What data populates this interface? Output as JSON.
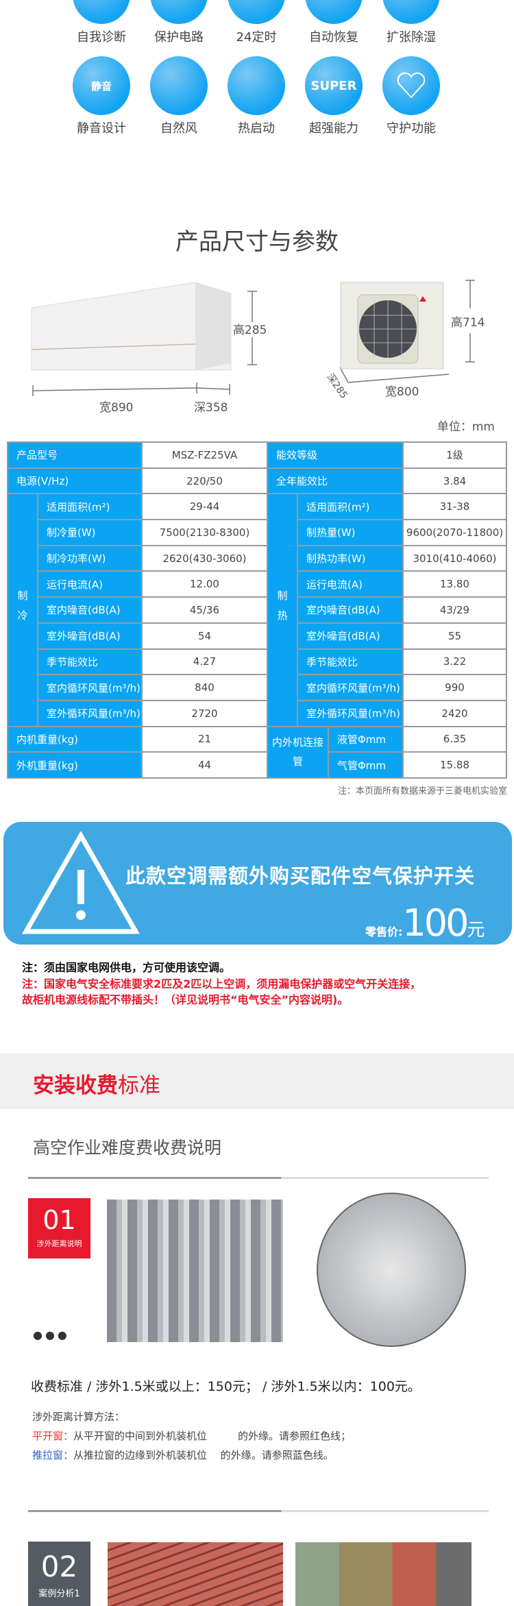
{
  "features": [
    {
      "label": "自我诊断",
      "icon": "self-diagnosis-icon"
    },
    {
      "label": "保护电路",
      "icon": "protection-circuit-icon"
    },
    {
      "label": "24定时",
      "icon": "timer-icon"
    },
    {
      "label": "自动恢复",
      "icon": "auto-restart-icon"
    },
    {
      "label": "扩张除湿",
      "icon": "dehumidify-icon"
    },
    {
      "label": "静音设计",
      "icon": "quiet-icon",
      "glyph": "静音"
    },
    {
      "label": "自然风",
      "icon": "natural-wind-icon"
    },
    {
      "label": "热启动",
      "icon": "hot-start-icon"
    },
    {
      "label": "超强能力",
      "icon": "super-icon",
      "glyph": "SUPER"
    },
    {
      "label": "守护功能",
      "icon": "heart-icon"
    }
  ],
  "dimensions": {
    "title": "产品尺寸与参数",
    "indoor": {
      "height": "高285",
      "width": "宽890",
      "depth": "深358"
    },
    "outdoor": {
      "height": "高714",
      "width": "宽800",
      "depth": "深285"
    },
    "unit": "单位：mm"
  },
  "spec": {
    "top": [
      [
        "产品型号",
        "MSZ-FZ25VA",
        "能效等级",
        "1级"
      ],
      [
        "电源(V/Hz)",
        "220/50",
        "全年能效比",
        "3.84"
      ]
    ],
    "cool_side": "制冷",
    "heat_side": "制热",
    "rows": [
      [
        "适用面积(m²)",
        "29-44",
        "适用面积(m²)",
        "31-38"
      ],
      [
        "制冷量(W)",
        "7500(2130-8300)",
        "制热量(W)",
        "9600(2070-11800)"
      ],
      [
        "制冷功率(W)",
        "2620(430-3060)",
        "制热功率(W)",
        "3010(410-4060)"
      ],
      [
        "运行电流(A)",
        "12.00",
        "运行电流(A)",
        "13.80"
      ],
      [
        "室内噪音(dB(A)",
        "45/36",
        "室内噪音(dB(A)",
        "43/29"
      ],
      [
        "室外噪音(dB(A)",
        "54",
        "室外噪音(dB(A)",
        "55"
      ],
      [
        "季节能效比",
        "4.27",
        "季节能效比",
        "3.22"
      ],
      [
        "室内循环风量(m³/h)",
        "840",
        "室内循环风量(m³/h)",
        "990"
      ],
      [
        "室外循环风量(m³/h)",
        "2720",
        "室外循环风量(m³/h)",
        "2420"
      ]
    ],
    "weights": [
      [
        "内机重量(kg)",
        "21",
        "液管Φmm",
        "6.35"
      ],
      [
        "外机重量(kg)",
        "44",
        "气管Φmm",
        "15.88"
      ]
    ],
    "pipe_label": "内外机连接管",
    "note": "注：本页面所有数据来源于三菱电机实验室"
  },
  "banner": {
    "text": "此款空调需额外购买配件空气保护开关",
    "price_label": "零售价:",
    "price": "100",
    "currency": "元",
    "color": "#40a8e2"
  },
  "notes": {
    "black": "注：须由国家电网供电，方可使用该空调。",
    "red1": "注：国家电气安全标准要求2匹及2匹以上空调，须用漏电保护器或空气开关连接，",
    "red2": "故柜机电源线标配不带插头！（详见说明书“电气安全”内容说明)。"
  },
  "install": {
    "heading_bold": "安装收费",
    "heading_rest": "标准",
    "subtitle": "高空作业难度费收费说明",
    "case1": {
      "num": "01",
      "label": "涉外距离说明"
    },
    "fee": "收费标准 / 涉外1.5米或以上：150元； / 涉外1.5米以内：100元。",
    "method": "涉外距离计算方法：",
    "casement_label": "平开窗：",
    "casement_text": "从平开窗的中间到外机装机位　　　的外缘。请参照红色线；",
    "sliding_label": "推拉窗：",
    "sliding_text": "从推拉窗的边缘到外机装机位　 的外缘。请参照蓝色线。",
    "case2": {
      "num": "02",
      "label": "案例分析1"
    }
  },
  "colors": {
    "accent_blue": "#0ba4f3",
    "brand_red": "#e8192c",
    "case_grey": "#555b63"
  }
}
